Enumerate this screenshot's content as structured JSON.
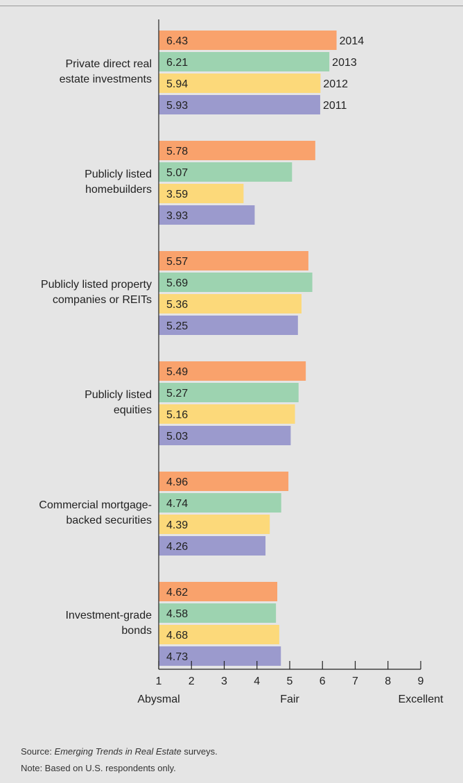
{
  "chart_data": {
    "type": "bar",
    "orientation": "horizontal",
    "categories": [
      "Private direct real estate investments",
      "Publicly listed homebuilders",
      "Publicly listed property companies or REITs",
      "Publicly listed equities",
      "Commercial mortgage-backed securities",
      "Investment-grade bonds"
    ],
    "category_lines": [
      [
        "Private direct real",
        "estate investments"
      ],
      [
        "Publicly listed",
        "homebuilders"
      ],
      [
        "Publicly listed property",
        "companies or REITs"
      ],
      [
        "Publicly listed",
        "equities"
      ],
      [
        "Commercial mortgage-",
        "backed securities"
      ],
      [
        "Investment-grade",
        "bonds"
      ]
    ],
    "series": [
      {
        "name": "2014",
        "color": "#f9a26c",
        "values": [
          6.43,
          5.78,
          5.57,
          5.49,
          4.96,
          4.62
        ],
        "labels": [
          "6.43",
          "5.78",
          "5.57",
          "5.49",
          "4.96",
          "4.62"
        ]
      },
      {
        "name": "2013",
        "color": "#9dd3b0",
        "values": [
          6.21,
          5.07,
          5.69,
          5.27,
          4.74,
          4.58
        ],
        "labels": [
          "6.21",
          "5.07",
          "5.69",
          "5.27",
          "4.74",
          "4.58"
        ]
      },
      {
        "name": "2012",
        "color": "#fcd97a",
        "values": [
          5.94,
          3.59,
          5.36,
          5.16,
          4.39,
          4.68
        ],
        "labels": [
          "5.94",
          "3.59",
          "5.36",
          "5.16",
          "4.39",
          "4.68"
        ]
      },
      {
        "name": "2011",
        "color": "#9b9acd",
        "values": [
          5.93,
          3.93,
          5.25,
          5.03,
          4.26,
          4.73
        ],
        "labels": [
          "5.93",
          "3.93",
          "5.25",
          "5.03",
          "4.26",
          "4.73"
        ]
      }
    ],
    "xlim": [
      1,
      9
    ],
    "xticks": [
      "1",
      "2",
      "3",
      "4",
      "5",
      "6",
      "7",
      "8",
      "9"
    ],
    "scale_labels": [
      {
        "text": "Abysmal",
        "at": 1
      },
      {
        "text": "Fair",
        "at": 5
      },
      {
        "text": "Excellent",
        "at": 9
      }
    ],
    "legend": "inline-first-group"
  },
  "notes": {
    "source_prefix": "Source: ",
    "source_italic": "Emerging Trends in Real Estate",
    "source_suffix": " surveys.",
    "note": "Note: Based on U.S. respondents only."
  }
}
